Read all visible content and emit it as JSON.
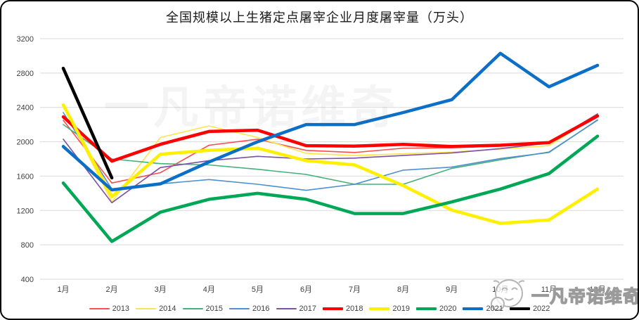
{
  "watermarks": {
    "center": "一凡帝诺维奇",
    "corner": "一凡帝诺维奇"
  },
  "chart_data": {
    "type": "line",
    "title": "全国规模以上生猪定点屠宰企业月度屠宰量（万头）",
    "xlabel": "",
    "ylabel": "",
    "categories": [
      "1月",
      "2月",
      "3月",
      "4月",
      "5月",
      "6月",
      "7月",
      "8月",
      "9月",
      "10月",
      "11月",
      "12月"
    ],
    "yticks": [
      3200,
      2800,
      2400,
      2000,
      1600,
      1200,
      800,
      400
    ],
    "ylim": [
      400,
      3200
    ],
    "grid": true,
    "grid_color": "#D9D9D9",
    "axis_text_color": "#404040",
    "legend_position": "bottom",
    "series": [
      {
        "name": "2013",
        "color": "#FF4D4D",
        "width": 1.6,
        "values": [
          2250,
          1520,
          1640,
          1960,
          2030,
          1900,
          1875,
          1925,
          1930,
          1950,
          1985,
          2290
        ]
      },
      {
        "name": "2014",
        "color": "#FFE34D",
        "width": 1.6,
        "values": [
          2420,
          1300,
          2050,
          2185,
          2050,
          1865,
          1840,
          1860,
          1880,
          1915,
          1955,
          2310
        ]
      },
      {
        "name": "2015",
        "color": "#45B07A",
        "width": 1.6,
        "values": [
          2200,
          1800,
          1745,
          1730,
          1680,
          1620,
          1505,
          1505,
          1690,
          1790,
          1880,
          2250
        ]
      },
      {
        "name": "2016",
        "color": "#4E8FD0",
        "width": 1.6,
        "values": [
          2340,
          1450,
          1510,
          1560,
          1505,
          1435,
          1505,
          1670,
          1705,
          1805,
          1875,
          2255
        ]
      },
      {
        "name": "2017",
        "color": "#7D4FA6",
        "width": 1.6,
        "values": [
          2030,
          1290,
          1700,
          1780,
          1830,
          1800,
          1810,
          1840,
          1870,
          1920,
          1985,
          2325
        ]
      },
      {
        "name": "2018",
        "color": "#FF0000",
        "width": 4.5,
        "values": [
          2290,
          1775,
          1970,
          2120,
          2135,
          1955,
          1950,
          1970,
          1945,
          1960,
          1990,
          2300
        ]
      },
      {
        "name": "2019",
        "color": "#FFF000",
        "width": 4.5,
        "values": [
          2430,
          1360,
          1855,
          1900,
          1925,
          1780,
          1730,
          1490,
          1205,
          1050,
          1090,
          1450
        ]
      },
      {
        "name": "2020",
        "color": "#00A855",
        "width": 4.5,
        "values": [
          1520,
          840,
          1180,
          1330,
          1400,
          1330,
          1165,
          1165,
          1300,
          1450,
          1630,
          2065
        ]
      },
      {
        "name": "2021",
        "color": "#0B6FC7",
        "width": 4.5,
        "values": [
          1945,
          1440,
          1510,
          1765,
          2000,
          2200,
          2200,
          2340,
          2490,
          3030,
          2640,
          2890
        ]
      },
      {
        "name": "2022",
        "color": "#000000",
        "width": 4.5,
        "values": [
          2855,
          1580,
          null,
          null,
          null,
          null,
          null,
          null,
          null,
          null,
          null,
          null
        ]
      }
    ]
  }
}
